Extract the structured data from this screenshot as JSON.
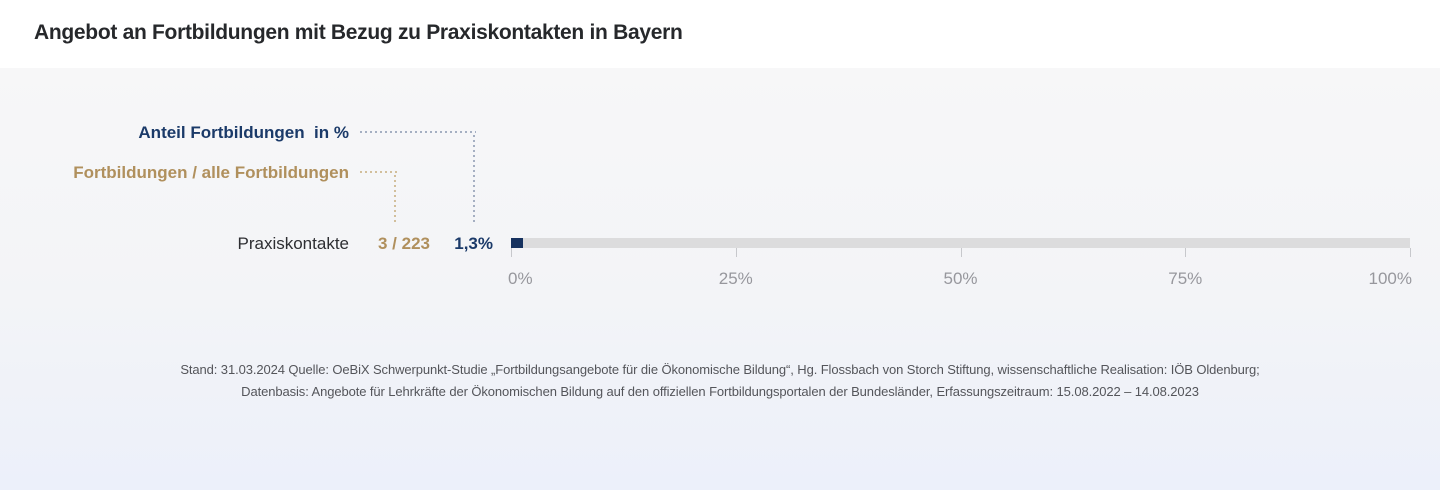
{
  "header": {
    "title": "Angebot an Fortbildungen mit Bezug zu Praxiskontakten in Bayern"
  },
  "annotations": {
    "percent_label": "Anteil Fortbildungen  in %",
    "fraction_label": "Fortbildungen / alle Fortbildungen"
  },
  "chart_data": {
    "type": "bar",
    "orientation": "horizontal",
    "title": "Angebot an Fortbildungen mit Bezug zu Praxiskontakten in Bayern",
    "categories": [
      "Praxiskontakte"
    ],
    "series": [
      {
        "name": "Anteil Fortbildungen in %",
        "values": [
          1.3
        ],
        "display_values": [
          "1,3%"
        ]
      }
    ],
    "fractions": [
      {
        "label": "3 / 223",
        "numerator": 3,
        "denominator": 223
      }
    ],
    "xlim": [
      0,
      100
    ],
    "x_ticks": [
      {
        "value": 0,
        "label": "0%"
      },
      {
        "value": 25,
        "label": "25%"
      },
      {
        "value": 50,
        "label": "50%"
      },
      {
        "value": 75,
        "label": "75%"
      },
      {
        "value": 100,
        "label": "100%"
      }
    ],
    "grid": false,
    "legend_position": "annotations-top-left-with-dotted-connectors"
  },
  "row": {
    "category": "Praxiskontakte",
    "fraction": "3 / 223",
    "percent": "1,3%"
  },
  "footer": {
    "line1": "Stand: 31.03.2024 Quelle: OeBiX Schwerpunkt-Studie „Fortbildungsangebote für die Ökonomische Bildung“, Hg. Flossbach von Storch Stiftung, wissenschaftliche Realisation: IÖB Oldenburg;",
    "line2": "Datenbasis: Angebote für Lehrkräfte der Ökonomischen Bildung auf den offiziellen Fortbildungsportalen der Bundesländer, Erfassungszeitraum: 15.08.2022 – 14.08.2023"
  },
  "colors": {
    "bar_fill_navy": "#16325f",
    "text_navy": "#1b3a69",
    "text_gold": "#b0905d",
    "connector_navy": "#a5afc2",
    "connector_gold": "#d2bf9c",
    "bar_track": "#dcdcdd",
    "axis_text": "#97979d",
    "footer_text": "#54555a",
    "title_text": "#26282b",
    "panel_gradient_top": "#f7f7f8",
    "panel_gradient_bottom": "#ecf0fa"
  }
}
